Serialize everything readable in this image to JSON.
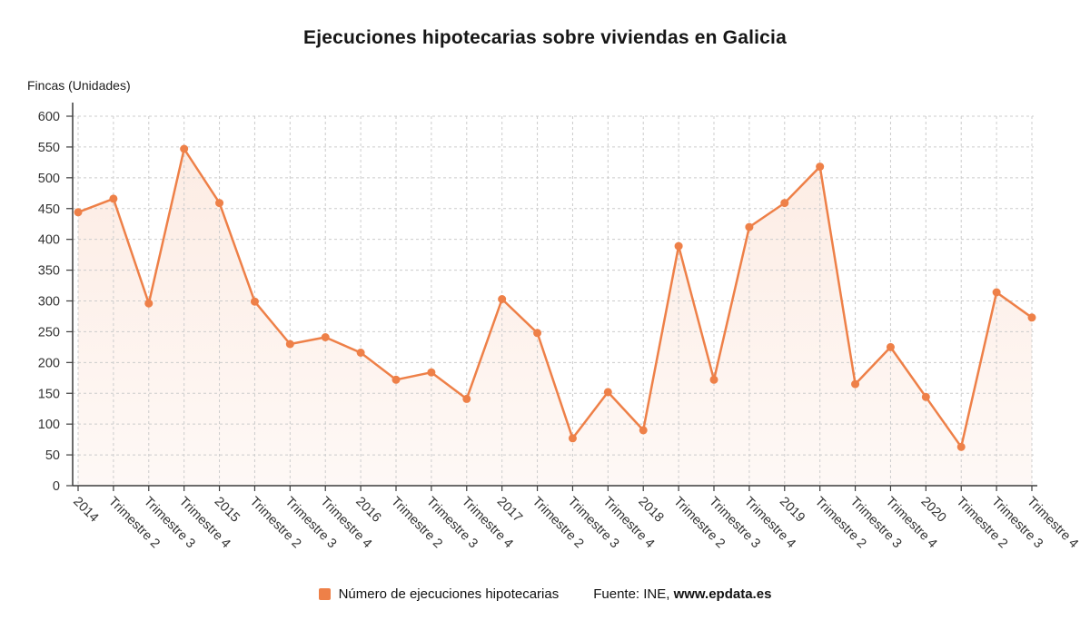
{
  "chart_data": {
    "type": "line",
    "title": "Ejecuciones hipotecarias sobre viviendas en Galicia",
    "ylabel": "Fincas (Unidades)",
    "xlabel": "",
    "ylim": [
      0,
      600
    ],
    "ytick_step": 50,
    "grid": true,
    "legend_position": "bottom",
    "categories": [
      "2014",
      "Trimestre 2",
      "Trimestre 3",
      "Trimestre 4",
      "2015",
      "Trimestre 2",
      "Trimestre 3",
      "Trimestre 4",
      "2016",
      "Trimestre 2",
      "Trimestre 3",
      "Trimestre 4",
      "2017",
      "Trimestre 2",
      "Trimestre 3",
      "Trimestre 4",
      "2018",
      "Trimestre 2",
      "Trimestre 3",
      "Trimestre 4",
      "2019",
      "Trimestre 2",
      "Trimestre 3",
      "Trimestre 4",
      "2020",
      "Trimestre 2",
      "Trimestre 3",
      "Trimestre 4"
    ],
    "series": [
      {
        "name": "Número de ejecuciones hipotecarias",
        "color": "#ee8048",
        "values": [
          444,
          466,
          296,
          547,
          459,
          299,
          230,
          241,
          216,
          172,
          184,
          141,
          303,
          248,
          77,
          152,
          90,
          389,
          172,
          420,
          459,
          518,
          165,
          225,
          144,
          63,
          314,
          273
        ]
      }
    ]
  },
  "source": {
    "prefix": "Fuente: INE, ",
    "site": "www.epdata.es"
  }
}
